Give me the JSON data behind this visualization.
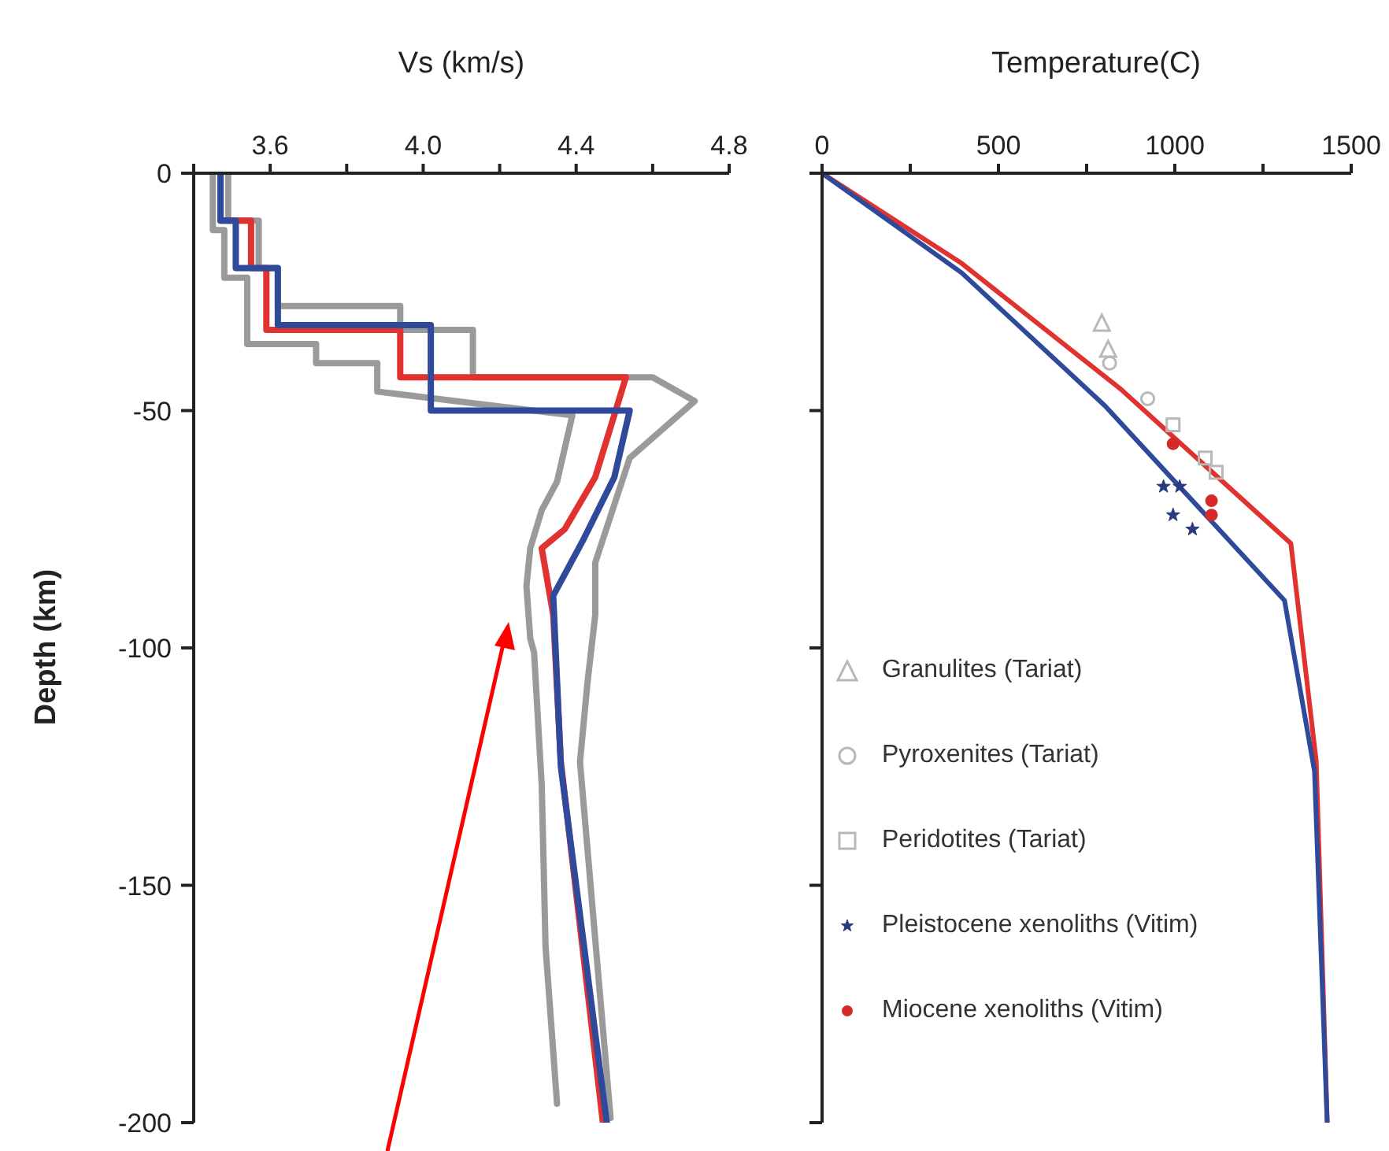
{
  "chart_data": [
    {
      "type": "line",
      "xlabel": "Vs (km/s)",
      "ylabel": "Depth (km)",
      "xlim": [
        3.4,
        4.8
      ],
      "xticks": [
        {
          "value": 3.4,
          "label": null
        },
        3.6,
        {
          "value": 3.8,
          "label": null
        },
        {
          "value": 4.0,
          "label": "4.0"
        },
        {
          "value": 4.2,
          "label": null
        },
        4.4,
        {
          "value": 4.6,
          "label": null
        },
        4.8
      ],
      "ylim": [
        -200,
        0
      ],
      "yticks": [
        0,
        -50,
        -100,
        -150,
        -200
      ],
      "series": [
        {
          "color": "#9a9a9a",
          "x": [
            3.45,
            3.45,
            3.48,
            3.48,
            3.54,
            3.54,
            3.72,
            3.72,
            3.88,
            3.88,
            4.39,
            4.35,
            4.31,
            4.28,
            4.27,
            4.28,
            4.29,
            4.31,
            4.32,
            4.35
          ],
          "values": [
            0,
            -12,
            -12,
            -22,
            -22,
            -36,
            -36,
            -40,
            -40,
            -46,
            -51,
            -65,
            -71,
            -79,
            -87,
            -98,
            -101,
            -129,
            -163,
            -196
          ]
        },
        {
          "color": "#9a9a9a",
          "x": [
            3.49,
            3.49,
            3.57,
            3.57,
            3.62,
            3.62,
            3.94,
            3.94,
            4.13,
            4.13,
            4.6,
            4.71,
            4.54,
            4.45,
            4.45,
            4.43,
            4.41,
            4.49
          ],
          "values": [
            0,
            -10,
            -10,
            -20,
            -20,
            -28,
            -28,
            -33,
            -33,
            -43,
            -43,
            -48,
            -60,
            -82,
            -93,
            -107,
            -124,
            -199
          ]
        },
        {
          "color": "#e0322f",
          "x": [
            3.47,
            3.47,
            3.55,
            3.55,
            3.59,
            3.59,
            3.94,
            3.94,
            4.53,
            4.45,
            4.37,
            4.31,
            4.34,
            4.36,
            4.47
          ],
          "values": [
            0,
            -10,
            -10,
            -20,
            -20,
            -33,
            -33,
            -43,
            -43,
            -64,
            -75,
            -79,
            -93,
            -124,
            -200
          ]
        },
        {
          "color": "#2f4a9a",
          "x": [
            3.47,
            3.47,
            3.51,
            3.51,
            3.62,
            3.62,
            4.02,
            4.02,
            4.54,
            4.5,
            4.42,
            4.34,
            4.36,
            4.48
          ],
          "values": [
            0,
            -10,
            -10,
            -20,
            -20,
            -32,
            -32,
            -50,
            -50,
            -64,
            -77,
            -89,
            -125,
            -200
          ]
        }
      ]
    },
    {
      "type": "line",
      "xlabel": "Temperature(C)",
      "xlim": [
        0,
        1500
      ],
      "xticks": [
        0,
        {
          "value": 250,
          "label": null
        },
        500,
        {
          "value": 750,
          "label": null
        },
        1000,
        {
          "value": 1250,
          "label": null
        },
        1500
      ],
      "ylim": [
        -200,
        0
      ],
      "yticks": [
        0,
        -50,
        -100,
        -150,
        -200
      ],
      "tick_labels": "x",
      "legend": "bottom left",
      "series": [
        {
          "color": "#e0322f",
          "x": [
            0,
            396,
            847,
            1329,
            1401,
            1432
          ],
          "values": [
            0,
            -19,
            -45.5,
            -78,
            -124,
            -200
          ]
        },
        {
          "color": "#2f4a9a",
          "x": [
            0,
            396,
            802,
            1311,
            1396,
            1432
          ],
          "values": [
            0,
            -21,
            -49,
            -90,
            -126,
            -200
          ]
        },
        {
          "type": "scatter",
          "name": "Granulites (Tariat)",
          "marker": "triangle",
          "color": "#b8b8b8",
          "x": [
            793,
            811
          ],
          "values": [
            -31.5,
            -37
          ]
        },
        {
          "type": "scatter",
          "name": "Pyroxenites (Tariat)",
          "marker": "circle",
          "color": "#b8b8b8",
          "x": [
            815,
            923
          ],
          "values": [
            -40,
            -47.5
          ]
        },
        {
          "type": "scatter",
          "name": "Peridotites (Tariat)",
          "marker": "square",
          "color": "#b8b8b8",
          "x": [
            995,
            1086,
            1117
          ],
          "values": [
            -53,
            -60,
            -63
          ]
        },
        {
          "type": "scatter",
          "name": "Pleistocene xenoliths (Vitim)",
          "marker": "star",
          "color": "#2a3a80",
          "x": [
            968,
            1014,
            995,
            1050
          ],
          "values": [
            -66,
            -66,
            -72,
            -75
          ]
        },
        {
          "type": "scatter",
          "name": "Miocene xenoliths (Vitim)",
          "marker": "circle",
          "color": "#d42a2a",
          "x": [
            995,
            1104,
            1104
          ],
          "values": [
            -57,
            -69,
            -72
          ]
        }
      ]
    }
  ]
}
